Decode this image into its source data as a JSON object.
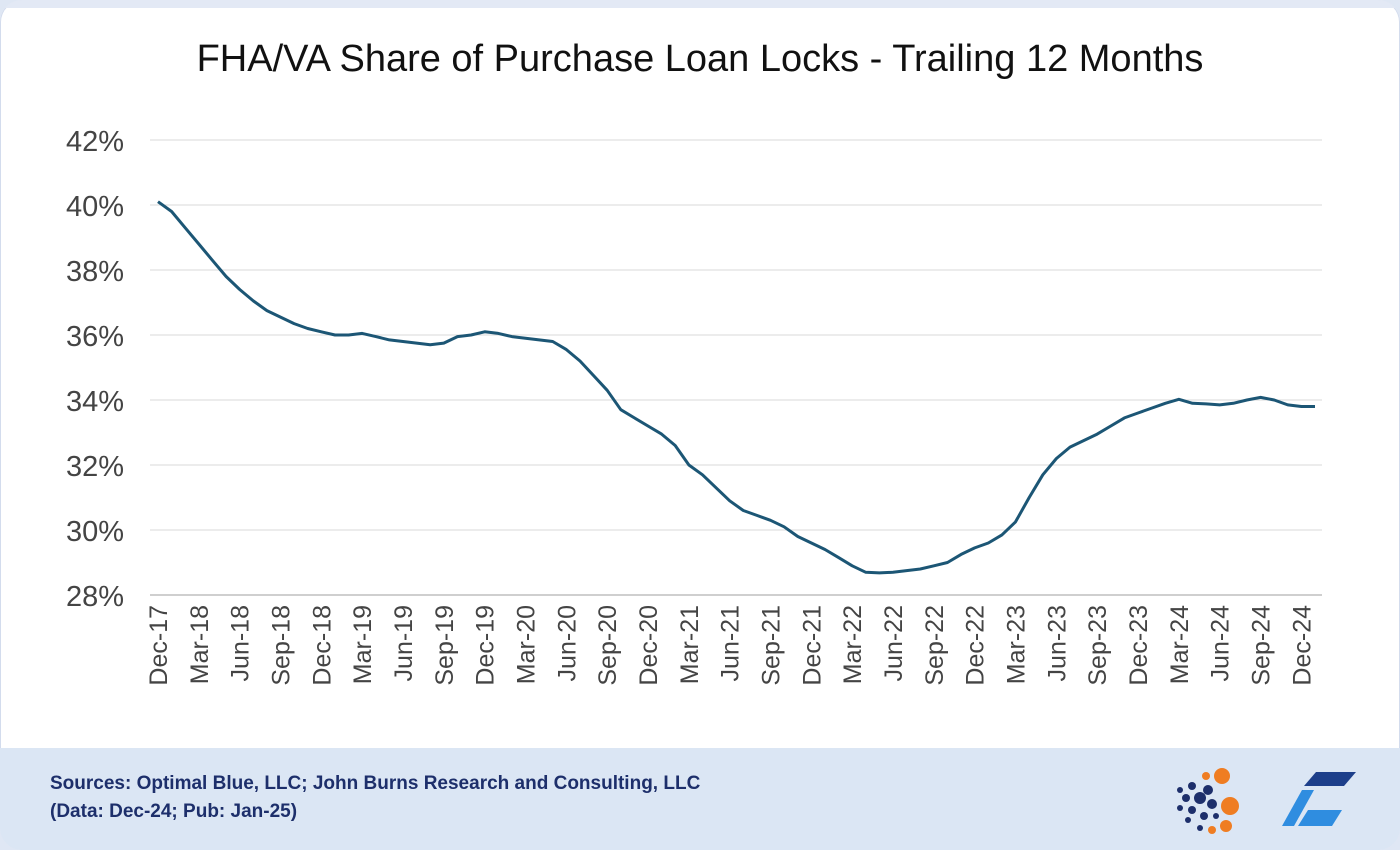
{
  "title": "FHA/VA Share of Purchase Loan Locks - Trailing 12 Months",
  "footer": {
    "sources": "Sources: Optimal Blue, LLC; John Burns Research and Consulting, LLC",
    "data_note": "(Data: Dec-24; Pub: Jan-25)"
  },
  "icons": {
    "left_logo": "dotted-circle-logo-icon",
    "right_logo": "blue-parallelogram-logo-icon"
  },
  "colors": {
    "line": "#1c5675",
    "grid": "#d9d9d9",
    "axis_text": "#444444",
    "footer_bg": "#dbe6f4",
    "footer_text": "#1d2f6b"
  },
  "chart_data": {
    "type": "line",
    "title": "FHA/VA Share of Purchase Loan Locks - Trailing 12 Months",
    "xlabel": "",
    "ylabel": "",
    "ylim": [
      28,
      42
    ],
    "yticks": [
      28,
      30,
      32,
      34,
      36,
      38,
      40,
      42
    ],
    "ytick_labels": [
      "28%",
      "30%",
      "32%",
      "34%",
      "36%",
      "38%",
      "40%",
      "42%"
    ],
    "grid": true,
    "legend": "none",
    "x_start": "Dec-17",
    "x_tick_labels": [
      "Dec-17",
      "Mar-18",
      "Jun-18",
      "Sep-18",
      "Dec-18",
      "Mar-19",
      "Jun-19",
      "Sep-19",
      "Dec-19",
      "Mar-20",
      "Jun-20",
      "Sep-20",
      "Dec-20",
      "Mar-21",
      "Jun-21",
      "Sep-21",
      "Dec-21",
      "Mar-22",
      "Jun-22",
      "Sep-22",
      "Dec-22",
      "Mar-23",
      "Jun-23",
      "Sep-23",
      "Dec-23",
      "Mar-24",
      "Jun-24",
      "Sep-24",
      "Dec-24"
    ],
    "series": [
      {
        "values": [
          40.1,
          39.8,
          39.3,
          38.8,
          38.3,
          37.8,
          37.4,
          37.05,
          36.75,
          36.55,
          36.35,
          36.2,
          36.1,
          36.0,
          36.0,
          36.05,
          35.95,
          35.85,
          35.8,
          35.75,
          35.7,
          35.75,
          35.95,
          36.0,
          36.1,
          36.05,
          35.95,
          35.9,
          35.85,
          35.8,
          35.55,
          35.2,
          34.75,
          34.3,
          33.7,
          33.45,
          33.2,
          32.95,
          32.6,
          32.0,
          31.7,
          31.3,
          30.9,
          30.6,
          30.45,
          30.3,
          30.1,
          29.8,
          29.6,
          29.4,
          29.15,
          28.9,
          28.7,
          28.68,
          28.7,
          28.75,
          28.8,
          28.9,
          29.0,
          29.25,
          29.45,
          29.6,
          29.85,
          30.25,
          31.0,
          31.7,
          32.2,
          32.55,
          32.75,
          32.95,
          33.2,
          33.45,
          33.6,
          33.75,
          33.9,
          34.02,
          33.9,
          33.88,
          33.85,
          33.9,
          34.0,
          34.08,
          34.0,
          33.85,
          33.8,
          33.8
        ]
      }
    ]
  }
}
